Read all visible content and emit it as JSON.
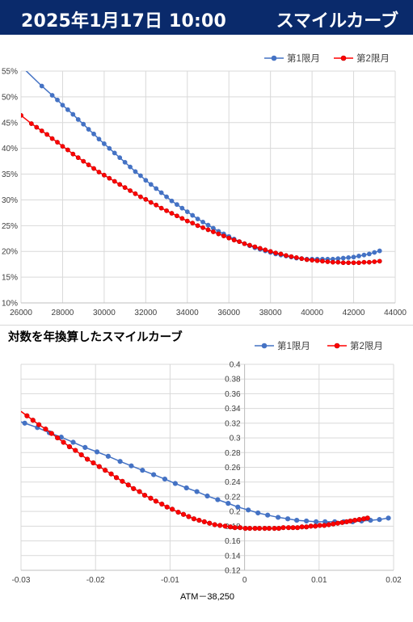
{
  "header": {
    "date": "2025年1月17日 10:00",
    "name": "スマイルカーブ"
  },
  "colors": {
    "header_bg": "#0a2a6b",
    "series1": "#4472c4",
    "series2": "#ff0000",
    "grid": "#d9d9d9"
  },
  "chart_data": [
    {
      "type": "line",
      "title": "",
      "xlabel": "",
      "ylabel": "",
      "xlim": [
        26000,
        44000
      ],
      "ylim": [
        0.1,
        0.55
      ],
      "xticks": [
        26000,
        28000,
        30000,
        32000,
        34000,
        36000,
        38000,
        40000,
        42000,
        44000
      ],
      "xtick_labels": [
        "26000",
        "28000",
        "30000",
        "32000",
        "34000",
        "36000",
        "38000",
        "40000",
        "42000",
        "44000"
      ],
      "yticks": [
        0.1,
        0.15,
        0.2,
        0.25,
        0.3,
        0.35,
        0.4,
        0.45,
        0.5,
        0.55
      ],
      "ytick_labels": [
        "10%",
        "15%",
        "20%",
        "25%",
        "30%",
        "35%",
        "40%",
        "45%",
        "50%",
        "55%"
      ],
      "legend": "top-right",
      "grid": true,
      "series": [
        {
          "name": "第1限月",
          "color": "#4472c4",
          "x": [
            26000,
            27000,
            27500,
            27750,
            28000,
            28250,
            28500,
            28750,
            29000,
            29250,
            29500,
            29750,
            30000,
            30250,
            30500,
            30750,
            31000,
            31250,
            31500,
            31750,
            32000,
            32250,
            32500,
            32750,
            33000,
            33250,
            33500,
            33750,
            34000,
            34250,
            34500,
            34750,
            35000,
            35250,
            35500,
            35750,
            36000,
            36250,
            36500,
            36750,
            37000,
            37250,
            37500,
            37750,
            38000,
            38250,
            38500,
            38750,
            39000,
            39250,
            39500,
            39750,
            40000,
            40250,
            40500,
            40750,
            41000,
            41250,
            41500,
            41750,
            42000,
            42250,
            42500,
            42750,
            43000,
            43250
          ],
          "y": [
            0.56,
            0.521,
            0.503,
            0.494,
            0.484,
            0.475,
            0.466,
            0.456,
            0.447,
            0.437,
            0.428,
            0.418,
            0.409,
            0.4,
            0.391,
            0.382,
            0.373,
            0.364,
            0.355,
            0.347,
            0.338,
            0.33,
            0.322,
            0.314,
            0.306,
            0.298,
            0.291,
            0.284,
            0.277,
            0.27,
            0.263,
            0.257,
            0.251,
            0.245,
            0.239,
            0.234,
            0.229,
            0.224,
            0.219,
            0.215,
            0.211,
            0.207,
            0.204,
            0.201,
            0.198,
            0.195,
            0.193,
            0.191,
            0.189,
            0.187,
            0.186,
            0.185,
            0.185,
            0.185,
            0.185,
            0.185,
            0.185,
            0.186,
            0.187,
            0.188,
            0.189,
            0.191,
            0.193,
            0.195,
            0.198,
            0.201
          ],
          "line_from_x": 26000
        },
        {
          "name": "第2限月",
          "color": "#ff0000",
          "x": [
            26000,
            26500,
            26750,
            27000,
            27250,
            27500,
            27750,
            28000,
            28250,
            28500,
            28750,
            29000,
            29250,
            29500,
            29750,
            30000,
            30250,
            30500,
            30750,
            31000,
            31250,
            31500,
            31750,
            32000,
            32250,
            32500,
            32750,
            33000,
            33250,
            33500,
            33750,
            34000,
            34250,
            34500,
            34750,
            35000,
            35250,
            35500,
            35750,
            36000,
            36250,
            36500,
            36750,
            37000,
            37250,
            37500,
            37750,
            38000,
            38250,
            38500,
            38750,
            39000,
            39250,
            39500,
            39750,
            40000,
            40250,
            40500,
            40750,
            41000,
            41250,
            41500,
            41750,
            42000,
            42250,
            42500,
            42750,
            43000,
            43250
          ],
          "y": [
            0.464,
            0.448,
            0.441,
            0.434,
            0.427,
            0.419,
            0.412,
            0.404,
            0.397,
            0.389,
            0.382,
            0.375,
            0.368,
            0.361,
            0.354,
            0.348,
            0.342,
            0.336,
            0.33,
            0.324,
            0.318,
            0.312,
            0.306,
            0.301,
            0.295,
            0.29,
            0.284,
            0.279,
            0.274,
            0.269,
            0.264,
            0.259,
            0.255,
            0.25,
            0.246,
            0.242,
            0.238,
            0.234,
            0.23,
            0.226,
            0.222,
            0.219,
            0.215,
            0.212,
            0.209,
            0.206,
            0.203,
            0.2,
            0.197,
            0.195,
            0.192,
            0.19,
            0.188,
            0.186,
            0.184,
            0.183,
            0.182,
            0.181,
            0.18,
            0.179,
            0.179,
            0.178,
            0.178,
            0.178,
            0.178,
            0.179,
            0.179,
            0.18,
            0.181
          ],
          "line_from_x": 26000
        }
      ]
    },
    {
      "type": "line",
      "title": "対数を年換算したスマイルカーブ",
      "xlabel": "ATM－38,250",
      "ylabel": "",
      "xlim": [
        -0.03,
        0.02
      ],
      "ylim": [
        0.12,
        0.4
      ],
      "xticks": [
        -0.03,
        -0.02,
        -0.01,
        0,
        0.01,
        0.02
      ],
      "xtick_labels": [
        "-0.03",
        "-0.02",
        "-0.01",
        "0",
        "0.01",
        "0.02"
      ],
      "yticks": [
        0.12,
        0.14,
        0.16,
        0.18,
        0.2,
        0.22,
        0.24,
        0.26,
        0.28,
        0.3,
        0.32,
        0.34,
        0.36,
        0.38,
        0.4
      ],
      "ytick_labels": [
        "0.12",
        "0.14",
        "0.16",
        "0.18",
        "0.2",
        "0.22",
        "0.24",
        "0.26",
        "0.28",
        "0.3",
        "0.32",
        "0.34",
        "0.36",
        "0.38",
        "0.4"
      ],
      "legend": "top-right",
      "grid": true,
      "series": [
        {
          "name": "第1限月",
          "color": "#4472c4",
          "x": [
            -0.0295,
            -0.0278,
            -0.0262,
            -0.0246,
            -0.023,
            -0.0214,
            -0.0198,
            -0.0183,
            -0.0167,
            -0.0152,
            -0.0137,
            -0.0122,
            -0.0107,
            -0.0093,
            -0.0078,
            -0.0064,
            -0.005,
            -0.0036,
            -0.0022,
            -0.0009,
            0.0005,
            0.0018,
            0.0031,
            0.0045,
            0.0058,
            0.007,
            0.0083,
            0.0096,
            0.0108,
            0.0121,
            0.0133,
            0.0145,
            0.0157,
            0.0169,
            0.0181,
            0.0193
          ],
          "y": [
            0.32,
            0.314,
            0.307,
            0.301,
            0.294,
            0.287,
            0.281,
            0.275,
            0.268,
            0.262,
            0.256,
            0.25,
            0.244,
            0.238,
            0.232,
            0.227,
            0.221,
            0.216,
            0.211,
            0.206,
            0.202,
            0.198,
            0.195,
            0.192,
            0.19,
            0.188,
            0.187,
            0.186,
            0.186,
            0.186,
            0.186,
            0.186,
            0.187,
            0.188,
            0.189,
            0.191
          ],
          "line_from_x": -0.03
        },
        {
          "name": "第2限月",
          "color": "#ff0000",
          "x": [
            -0.0292,
            -0.0284,
            -0.0276,
            -0.0267,
            -0.0259,
            -0.0251,
            -0.0243,
            -0.0235,
            -0.0227,
            -0.0219,
            -0.0211,
            -0.0203,
            -0.0195,
            -0.0187,
            -0.0179,
            -0.0172,
            -0.0164,
            -0.0156,
            -0.0149,
            -0.0141,
            -0.0134,
            -0.0126,
            -0.0119,
            -0.0111,
            -0.0104,
            -0.0097,
            -0.0089,
            -0.0082,
            -0.0075,
            -0.0068,
            -0.0061,
            -0.0054,
            -0.0047,
            -0.004,
            -0.0033,
            -0.0026,
            -0.0019,
            -0.0013,
            -0.0006,
            0.0001,
            0.0007,
            0.0014,
            0.002,
            0.0027,
            0.0033,
            0.004,
            0.0046,
            0.0052,
            0.0059,
            0.0065,
            0.0071,
            0.0077,
            0.0083,
            0.0089,
            0.0095,
            0.0101,
            0.0107,
            0.0113,
            0.0119,
            0.0125,
            0.0131,
            0.0137,
            0.0142,
            0.0148,
            0.0154,
            0.016,
            0.0165
          ],
          "y": [
            0.33,
            0.324,
            0.318,
            0.312,
            0.306,
            0.3,
            0.294,
            0.288,
            0.283,
            0.277,
            0.271,
            0.266,
            0.261,
            0.256,
            0.251,
            0.246,
            0.241,
            0.236,
            0.231,
            0.227,
            0.222,
            0.218,
            0.214,
            0.21,
            0.206,
            0.203,
            0.199,
            0.196,
            0.193,
            0.19,
            0.188,
            0.186,
            0.184,
            0.182,
            0.181,
            0.18,
            0.179,
            0.178,
            0.178,
            0.177,
            0.177,
            0.177,
            0.177,
            0.177,
            0.177,
            0.177,
            0.177,
            0.178,
            0.178,
            0.178,
            0.178,
            0.179,
            0.179,
            0.18,
            0.18,
            0.181,
            0.181,
            0.182,
            0.183,
            0.184,
            0.185,
            0.186,
            0.187,
            0.188,
            0.189,
            0.19,
            0.191
          ],
          "line_from_x": -0.03
        }
      ]
    }
  ]
}
